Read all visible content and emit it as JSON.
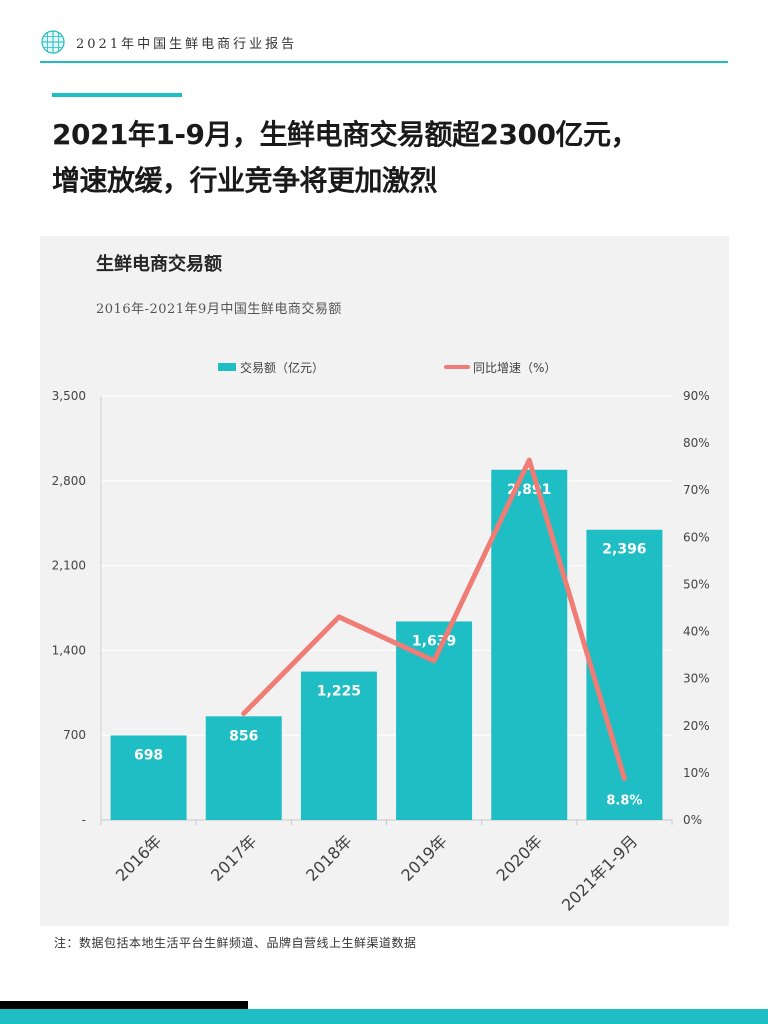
{
  "header": {
    "logo_icon": "globe-grid-icon",
    "title": "2021年中国生鲜电商行业报告"
  },
  "headline": {
    "line1": "2021年1-9月，生鲜电商交易额超2300亿元，",
    "line2": "增速放缓，行业竞争将更加激烈"
  },
  "chart_data": {
    "type": "bar",
    "title": "生鲜电商交易额",
    "subtitle": "2016年-2021年9月中国生鲜电商交易额",
    "categories": [
      "2016年",
      "2017年",
      "2018年",
      "2019年",
      "2020年",
      "2021年1-9月"
    ],
    "series": [
      {
        "name": "交易额（亿元）",
        "type": "bar",
        "axis": "left",
        "values": [
          698,
          856,
          1225,
          1639,
          2891,
          2396
        ],
        "labels": [
          "698",
          "856",
          "1,225",
          "1,639",
          "2,891",
          "2,396"
        ],
        "color": "#1fbec4"
      },
      {
        "name": "同比增速（%）",
        "type": "line",
        "axis": "right",
        "values": [
          null,
          22.6,
          43.1,
          33.8,
          76.4,
          8.8
        ],
        "labels": [
          "",
          "",
          "",
          "",
          "",
          "8.8%"
        ],
        "color": "#f07c76"
      }
    ],
    "y_left": {
      "range": [
        0,
        3500
      ],
      "ticks": [
        0,
        700,
        1400,
        2100,
        2800,
        3500
      ],
      "tick_labels": [
        "-",
        "700",
        "1,400",
        "2,100",
        "2,800",
        "3,500"
      ]
    },
    "y_right": {
      "range": [
        0,
        90
      ],
      "ticks": [
        0,
        10,
        20,
        30,
        40,
        50,
        60,
        70,
        80,
        90
      ],
      "tick_labels": [
        "0%",
        "10%",
        "20%",
        "30%",
        "40%",
        "50%",
        "60%",
        "70%",
        "80%",
        "90%"
      ]
    },
    "grid": true,
    "legend_position": "top"
  },
  "note": "注：数据包括本地生活平台生鲜频道、品牌自营线上生鲜渠道数据"
}
